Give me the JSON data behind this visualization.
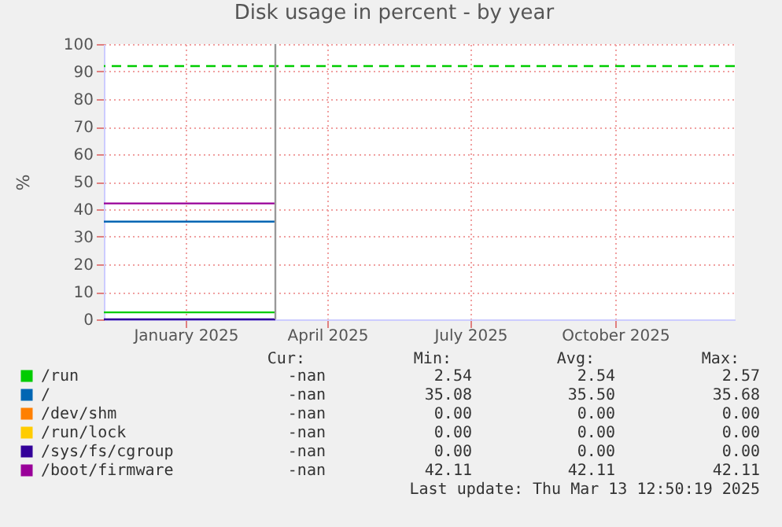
{
  "chart_data": {
    "type": "line",
    "title": "Disk usage in percent - by year",
    "ylabel": "%",
    "x": [
      "2024-11-25",
      "2025-03-14"
    ],
    "series": [
      {
        "name": "/run",
        "color": "#00cc00",
        "values": [
          2.54,
          2.54
        ]
      },
      {
        "name": "/",
        "color": "#0066b3",
        "values": [
          35.5,
          35.5
        ]
      },
      {
        "name": "/dev/shm",
        "color": "#ff8000",
        "values": [
          null,
          null
        ]
      },
      {
        "name": "/run/lock",
        "color": "#ffcc00",
        "values": [
          null,
          null
        ]
      },
      {
        "name": "/sys/fs/cgroup",
        "color": "#330099",
        "values": [
          0,
          0
        ]
      },
      {
        "name": "/boot/firmware",
        "color": "#990099",
        "values": [
          42.11,
          42.11
        ]
      }
    ],
    "xlim": [
      "2024-11-25",
      "2025-12-31"
    ],
    "xticks": [
      {
        "value": "2025-01-16",
        "label": "January 2025"
      },
      {
        "value": "2025-04-16",
        "label": "April 2025"
      },
      {
        "value": "2025-07-16",
        "label": "July 2025"
      },
      {
        "value": "2025-10-16",
        "label": "October 2025"
      }
    ],
    "ylim": [
      0,
      100
    ],
    "yticks": [
      0,
      10,
      20,
      30,
      40,
      50,
      60,
      70,
      80,
      90,
      100
    ],
    "ref_lines": [
      {
        "axis": "y",
        "value": 92,
        "color": "#00cc00",
        "line_style": "dashed"
      },
      {
        "axis": "x",
        "value": "2025-03-14",
        "color": "#999999",
        "line_style": "solid"
      }
    ],
    "grid": true,
    "legend": "bottom left",
    "line_style": "solid",
    "marker": "none",
    "annotations": [
      "Cur:",
      "Min:",
      "Avg:",
      "Max:",
      "-nan",
      "2.54",
      "2.54",
      "2.57",
      "-nan",
      "35.08",
      "35.50",
      "35.68",
      "-nan",
      "0.00",
      "0.00",
      "0.00",
      "-nan",
      "0.00",
      "0.00",
      "0.00",
      "-nan",
      "0.00",
      "0.00",
      "0.00",
      "-nan",
      "42.11",
      "42.11",
      "42.11",
      "Last update: Thu Mar 13 12:50:19 2025"
    ]
  }
}
